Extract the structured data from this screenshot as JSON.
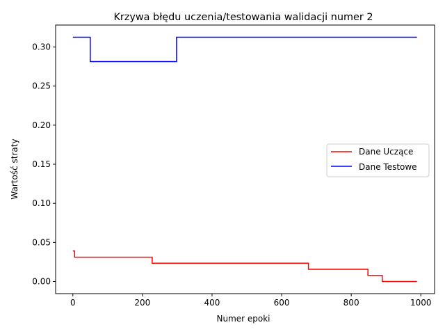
{
  "chart_data": {
    "type": "line",
    "title": "Krzywa błędu uczenia/testowania walidacji numer 2",
    "xlabel": "Numer epoki",
    "ylabel": "Wartość straty",
    "xlim": [
      -49.5,
      1039.5
    ],
    "ylim": [
      -0.0156,
      0.3281
    ],
    "xticks": [
      0,
      200,
      400,
      600,
      800,
      1000
    ],
    "yticks": [
      0.0,
      0.05,
      0.1,
      0.15,
      0.2,
      0.25,
      0.3
    ],
    "ytick_labels": [
      "0.00",
      "0.05",
      "0.10",
      "0.15",
      "0.20",
      "0.25",
      "0.30"
    ],
    "grid": false,
    "legend_position": "center-right",
    "series": [
      {
        "name": "Dane Uczące",
        "color": "#ff0000",
        "step_points": [
          [
            0,
            0.039
          ],
          [
            5,
            0.039
          ],
          [
            5,
            0.031
          ],
          [
            228,
            0.031
          ],
          [
            228,
            0.0234
          ],
          [
            677,
            0.0234
          ],
          [
            677,
            0.0156
          ],
          [
            848,
            0.0156
          ],
          [
            848,
            0.0078
          ],
          [
            889,
            0.0078
          ],
          [
            889,
            0.0
          ],
          [
            989,
            0.0
          ]
        ]
      },
      {
        "name": "Dane Testowe",
        "color": "#0000ff",
        "step_points": [
          [
            0,
            0.3125
          ],
          [
            50,
            0.3125
          ],
          [
            50,
            0.2813
          ],
          [
            298,
            0.2813
          ],
          [
            298,
            0.3125
          ],
          [
            989,
            0.3125
          ]
        ]
      }
    ]
  }
}
